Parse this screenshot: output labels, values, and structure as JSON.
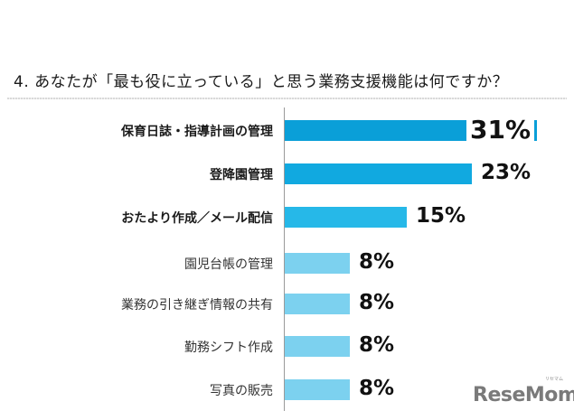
{
  "chart_data": {
    "type": "bar",
    "orientation": "horizontal",
    "title": "4. あなたが「最も役に立っている」と思う業務支援機能は何ですか？",
    "categories": [
      "保育日誌・指導計画の管理",
      "登降園管理",
      "おたより作成／メール配信",
      "園児台帳の管理",
      "業務の引き継ぎ情報の共有",
      "勤務シフト作成",
      "写真の販売"
    ],
    "values": [
      31,
      23,
      15,
      8,
      8,
      8,
      8
    ],
    "value_labels": [
      "31%",
      "23%",
      "15%",
      "8%",
      "8%",
      "8%",
      "8%"
    ],
    "unit": "%",
    "xlabel": "",
    "ylabel": "",
    "grid": false,
    "legend": null,
    "colors": [
      "#0a9fd8",
      "#11a9e0",
      "#26b8e8",
      "#7cd1ef",
      "#7cd1ef",
      "#7cd1ef",
      "#7cd1ef"
    ]
  },
  "logo": {
    "text": "ReseMom",
    "sub": "リセマム"
  }
}
